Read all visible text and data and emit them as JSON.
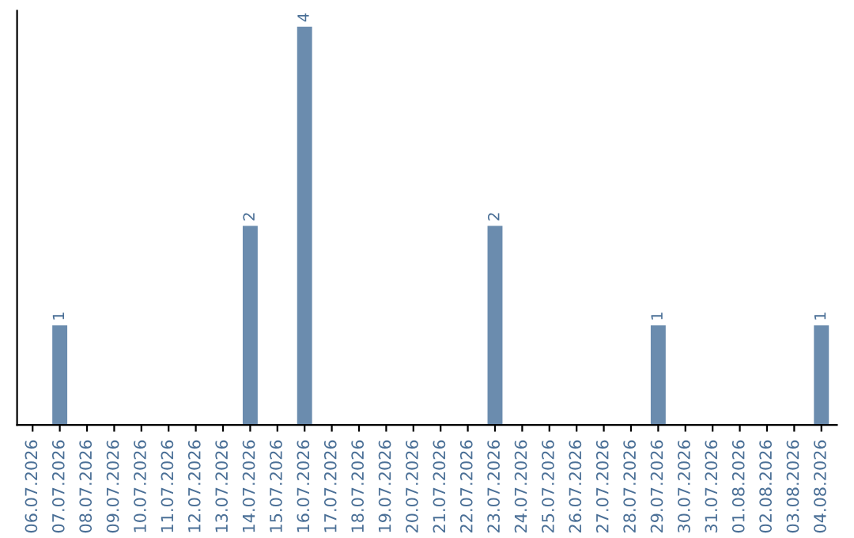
{
  "chart_data": {
    "type": "bar",
    "categories": [
      "06.07.2026",
      "07.07.2026",
      "08.07.2026",
      "09.07.2026",
      "10.07.2026",
      "11.07.2026",
      "12.07.2026",
      "13.07.2026",
      "14.07.2026",
      "15.07.2026",
      "16.07.2026",
      "17.07.2026",
      "18.07.2026",
      "19.07.2026",
      "20.07.2026",
      "21.07.2026",
      "22.07.2026",
      "23.07.2026",
      "24.07.2026",
      "25.07.2026",
      "26.07.2026",
      "27.07.2026",
      "28.07.2026",
      "29.07.2026",
      "30.07.2026",
      "31.07.2026",
      "01.08.2026",
      "02.08.2026",
      "03.08.2026",
      "04.08.2026"
    ],
    "values": [
      0,
      1,
      0,
      0,
      0,
      0,
      0,
      0,
      2,
      0,
      4,
      0,
      0,
      0,
      0,
      0,
      0,
      2,
      0,
      0,
      0,
      0,
      0,
      1,
      0,
      0,
      0,
      0,
      0,
      1
    ],
    "value_labels": [
      null,
      "1",
      null,
      null,
      null,
      null,
      null,
      null,
      "2",
      null,
      "4",
      null,
      null,
      null,
      null,
      null,
      null,
      "2",
      null,
      null,
      null,
      null,
      null,
      "1",
      null,
      null,
      null,
      null,
      null,
      "1"
    ],
    "color": "#6b8cae",
    "tick_labels": "x",
    "grid": false,
    "legend": false
  }
}
